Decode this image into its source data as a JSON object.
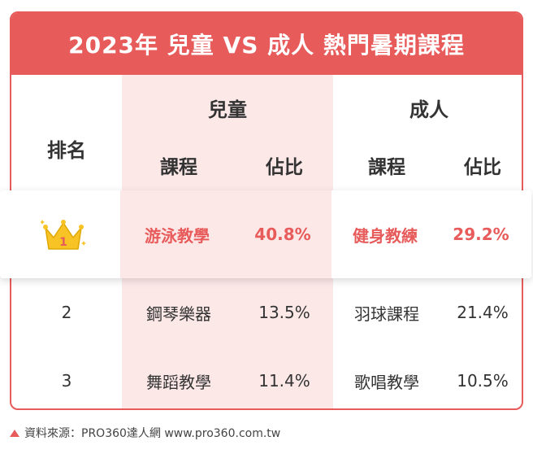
{
  "title": "2023年 兒童 VS 成人 熱門暑期課程",
  "headers": {
    "rank": "排名",
    "children": "兒童",
    "adults": "成人",
    "course": "課程",
    "share": "佔比"
  },
  "rows": [
    {
      "rank": "1",
      "child_course": "游泳教學",
      "child_share": "40.8%",
      "adult_course": "健身教練",
      "adult_share": "29.2%"
    },
    {
      "rank": "2",
      "child_course": "鋼琴樂器",
      "child_share": "13.5%",
      "adult_course": "羽球課程",
      "adult_share": "21.4%"
    },
    {
      "rank": "3",
      "child_course": "舞蹈教學",
      "child_share": "11.4%",
      "adult_course": "歌唱教學",
      "adult_share": "10.5%"
    }
  ],
  "source": "資料來源：PRO360達人網 www.pro360.com.tw",
  "colors": {
    "accent": "#e85b5b",
    "child_bg": "#fde8e8",
    "crown": "#f7c325"
  },
  "icons": {
    "crown": "crown-icon",
    "source_marker": "triangle-icon"
  }
}
